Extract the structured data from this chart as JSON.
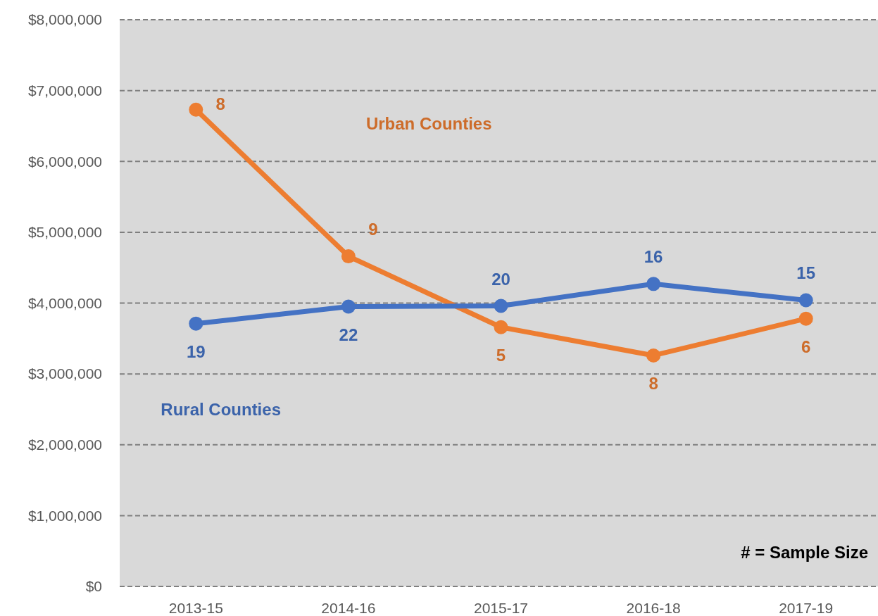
{
  "chart_data": {
    "type": "line",
    "categories": [
      "2013-15",
      "2014-16",
      "2015-17",
      "2016-18",
      "2017-19"
    ],
    "series": [
      {
        "name": "Urban Counties",
        "color": "#ed7d31",
        "values": [
          6730000,
          4660000,
          3660000,
          3260000,
          3780000
        ]
      },
      {
        "name": "Rural Counties",
        "color": "#4472c4",
        "values": [
          3710000,
          3950000,
          3960000,
          4270000,
          4040000
        ]
      }
    ],
    "ylim": [
      0,
      8000000
    ],
    "yticks": [
      {
        "value": 0,
        "label": "$0"
      },
      {
        "value": 1000000,
        "label": "$1,000,000"
      },
      {
        "value": 2000000,
        "label": "$2,000,000"
      },
      {
        "value": 3000000,
        "label": "$3,000,000"
      },
      {
        "value": 4000000,
        "label": "$4,000,000"
      },
      {
        "value": 5000000,
        "label": "$5,000,000"
      },
      {
        "value": 6000000,
        "label": "$6,000,000"
      },
      {
        "value": 7000000,
        "label": "$7,000,000"
      },
      {
        "value": 8000000,
        "label": "$8,000,000"
      }
    ],
    "grid": "y",
    "legend": false,
    "marker": "circle",
    "line_style": "solid",
    "annotations": [
      {
        "text": "8",
        "x": "2013-15",
        "y": 6730000
      },
      {
        "text": "19",
        "x": "2013-15",
        "y": 3710000
      },
      {
        "text": "9",
        "x": "2014-16",
        "y": 4660000
      },
      {
        "text": "22",
        "x": "2014-16",
        "y": 3950000
      },
      {
        "text": "20",
        "x": "2015-17",
        "y": 3960000
      },
      {
        "text": "5",
        "x": "2015-17",
        "y": 3660000
      },
      {
        "text": "16",
        "x": "2016-18",
        "y": 4270000
      },
      {
        "text": "8",
        "x": "2016-18",
        "y": 3260000
      },
      {
        "text": "15",
        "x": "2017-19",
        "y": 4040000
      },
      {
        "text": "6",
        "x": "2017-19",
        "y": 3780000
      },
      "# = Sample Size"
    ]
  }
}
